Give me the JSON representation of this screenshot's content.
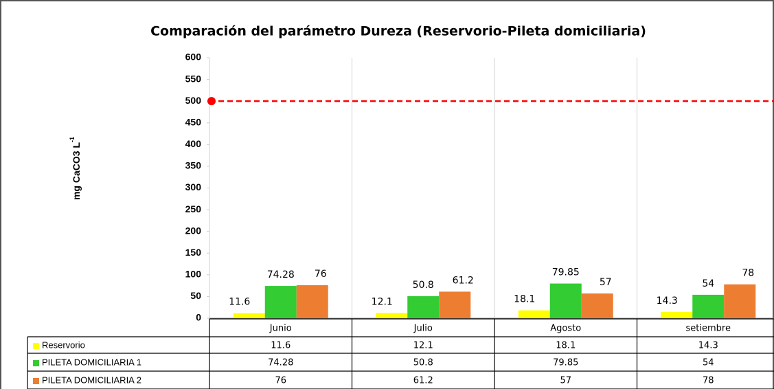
{
  "chart_data": {
    "type": "bar",
    "title": "Comparación  del parámetro  Dureza (Reservorio-Pileta domiciliaria)",
    "y_label": "mg CaCO3 L",
    "y_label_superscript": "-1",
    "categories": [
      "Junio",
      "Julio",
      "Agosto",
      "setiembre"
    ],
    "series": [
      {
        "name": "Reservorio",
        "color": "#ffff00",
        "values": [
          11.6,
          12.1,
          18.1,
          14.3
        ]
      },
      {
        "name": "PILETA DOMICILIARIA 1",
        "color": "#33cc33",
        "values": [
          74.28,
          50.8,
          79.85,
          54
        ]
      },
      {
        "name": "PILETA DOMICILIARIA 2",
        "color": "#ed7d31",
        "values": [
          76,
          61.2,
          57,
          78
        ]
      }
    ],
    "reference_line": {
      "value": 500,
      "color": "#ff0000"
    },
    "ylim": [
      0,
      600
    ],
    "yticks": [
      0,
      50,
      100,
      150,
      200,
      250,
      300,
      350,
      400,
      450,
      500,
      550,
      600
    ],
    "grid": "vertical"
  }
}
